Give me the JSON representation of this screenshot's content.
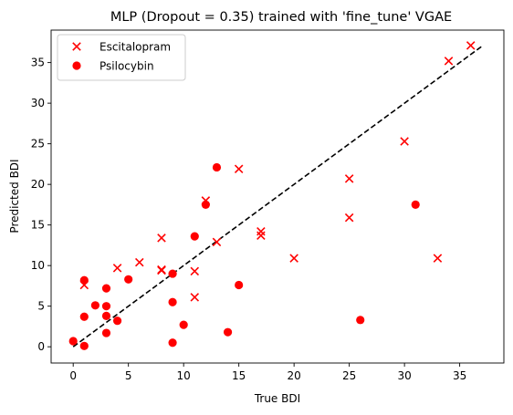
{
  "chart_data": {
    "type": "scatter",
    "title": "MLP (Dropout = 0.35) trained with 'fine_tune' VGAE",
    "xlabel": "True BDI",
    "ylabel": "Predicted BDI",
    "xlim": [
      -2,
      39
    ],
    "ylim": [
      -2,
      39
    ],
    "xticks": [
      0,
      5,
      10,
      15,
      20,
      25,
      30,
      35
    ],
    "yticks": [
      0,
      5,
      10,
      15,
      20,
      25,
      30,
      35
    ],
    "grid": false,
    "legend_position": "top-left",
    "reference_line": {
      "style": "dashed",
      "color": "#000000",
      "from": [
        0,
        0
      ],
      "to": [
        37,
        37
      ]
    },
    "series": [
      {
        "name": "Escitalopram",
        "marker": "x",
        "color": "#ff0000",
        "points": [
          [
            1,
            7.6
          ],
          [
            4,
            9.7
          ],
          [
            6,
            10.4
          ],
          [
            8,
            13.4
          ],
          [
            8,
            9.5
          ],
          [
            8,
            9.4
          ],
          [
            11,
            9.3
          ],
          [
            11,
            6.1
          ],
          [
            12,
            18.0
          ],
          [
            13,
            12.9
          ],
          [
            15,
            21.9
          ],
          [
            17,
            14.2
          ],
          [
            17,
            13.7
          ],
          [
            20,
            10.9
          ],
          [
            25,
            20.7
          ],
          [
            25,
            15.9
          ],
          [
            30,
            25.3
          ],
          [
            33,
            10.9
          ],
          [
            34,
            35.2
          ],
          [
            36,
            37.1
          ]
        ]
      },
      {
        "name": "Psilocybin",
        "marker": "o",
        "color": "#ff0000",
        "points": [
          [
            0,
            0.7
          ],
          [
            1,
            8.2
          ],
          [
            1,
            3.7
          ],
          [
            1,
            0.1
          ],
          [
            2,
            5.1
          ],
          [
            3,
            7.2
          ],
          [
            3,
            5.0
          ],
          [
            3,
            3.8
          ],
          [
            3,
            1.7
          ],
          [
            4,
            3.2
          ],
          [
            5,
            8.3
          ],
          [
            9,
            9.0
          ],
          [
            9,
            5.5
          ],
          [
            9,
            0.5
          ],
          [
            10,
            2.7
          ],
          [
            11,
            13.6
          ],
          [
            12,
            17.5
          ],
          [
            13,
            22.1
          ],
          [
            14,
            1.8
          ],
          [
            15,
            7.6
          ],
          [
            26,
            3.3
          ],
          [
            31,
            17.5
          ]
        ]
      }
    ]
  }
}
